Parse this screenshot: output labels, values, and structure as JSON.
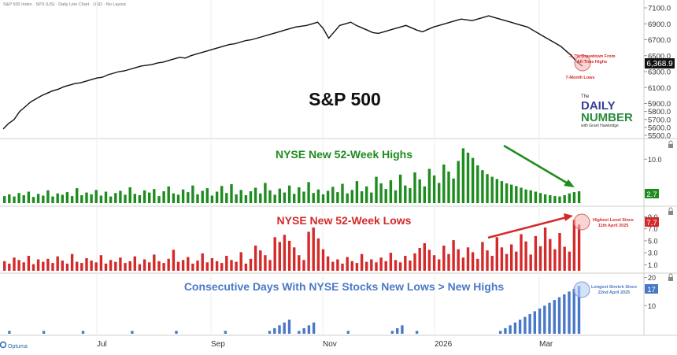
{
  "header": {
    "caption": "S&P 500 Index · SPX (US) · Daily Line Chart · USD · No Layout"
  },
  "colors": {
    "price": "#111111",
    "highs": "#1e8c1e",
    "lows": "#d42a2a",
    "streak": "#4a78c8",
    "grid": "#e6e6e6",
    "badge_price_bg": "#111111"
  },
  "chart_data": [
    {
      "type": "line",
      "title": "S&P 500",
      "series": [
        {
          "name": "S&P 500",
          "values": [
            5580,
            5650,
            5700,
            5800,
            5860,
            5920,
            5960,
            6000,
            6030,
            6060,
            6080,
            6110,
            6130,
            6150,
            6160,
            6180,
            6200,
            6220,
            6230,
            6260,
            6280,
            6300,
            6310,
            6330,
            6350,
            6370,
            6380,
            6390,
            6410,
            6420,
            6440,
            6460,
            6480,
            6470,
            6500,
            6520,
            6540,
            6560,
            6580,
            6600,
            6620,
            6640,
            6650,
            6670,
            6690,
            6700,
            6720,
            6740,
            6760,
            6780,
            6800,
            6820,
            6840,
            6860,
            6870,
            6880,
            6900,
            6920,
            6840,
            6720,
            6800,
            6880,
            6900,
            6920,
            6880,
            6850,
            6820,
            6790,
            6780,
            6800,
            6820,
            6840,
            6860,
            6880,
            6850,
            6820,
            6800,
            6830,
            6860,
            6880,
            6900,
            6920,
            6940,
            6960,
            6950,
            6940,
            6960,
            6980,
            7000,
            6980,
            6960,
            6940,
            6920,
            6900,
            6880,
            6860,
            6820,
            6780,
            6740,
            6700,
            6660,
            6620,
            6560,
            6500,
            6420,
            6369
          ]
        }
      ],
      "ylim": [
        5500,
        7100
      ],
      "yticks": [
        "7100.0",
        "6900.0",
        "6700.0",
        "6500.0",
        "6300.0",
        "6100.0",
        "5900.0",
        "5800.0",
        "5700.0",
        "5600.0",
        "5500.0"
      ],
      "yticks_values": [
        7100,
        6900,
        6700,
        6500,
        6300,
        6100,
        5900,
        5800,
        5700,
        5600,
        5500
      ],
      "last_value": "6,368.9",
      "annotations": [
        {
          "text_line1": "-8.7% Drawdown From",
          "text_line2": "All-Time Highs"
        },
        {
          "text": "7-Month Lows"
        }
      ]
    },
    {
      "type": "bar",
      "title": "NYSE New 52-Week Highs",
      "series": [
        {
          "name": "NYSE New 52-Week Highs",
          "values": [
            1.6,
            2.0,
            1.5,
            2.3,
            1.8,
            2.6,
            1.4,
            2.1,
            1.7,
            2.9,
            1.5,
            2.2,
            1.9,
            2.5,
            1.6,
            3.4,
            1.8,
            2.4,
            2.0,
            3.0,
            1.7,
            2.6,
            1.5,
            2.3,
            2.8,
            1.9,
            3.6,
            2.1,
            1.8,
            2.9,
            2.4,
            3.2,
            1.6,
            2.7,
            3.8,
            2.2,
            1.9,
            3.1,
            2.5,
            4.0,
            2.0,
            2.8,
            3.4,
            1.7,
            2.6,
            3.9,
            2.3,
            4.3,
            2.0,
            3.0,
            1.8,
            2.7,
            3.5,
            2.2,
            4.6,
            2.9,
            1.9,
            3.3,
            2.4,
            4.0,
            2.1,
            3.6,
            2.6,
            4.8,
            2.3,
            3.1,
            2.0,
            2.8,
            3.7,
            2.5,
            4.4,
            2.2,
            3.0,
            5.0,
            2.7,
            3.8,
            2.4,
            6.0,
            4.5,
            3.2,
            5.2,
            2.9,
            6.5,
            4.0,
            3.4,
            7.0,
            5.4,
            3.8,
            7.8,
            6.3,
            4.6,
            8.8,
            7.2,
            5.6,
            9.6,
            12.5,
            11.5,
            10.3,
            8.6,
            7.5,
            6.6,
            6.0,
            5.5,
            5.0,
            4.5,
            4.2,
            3.9,
            3.5,
            3.1,
            2.9,
            2.6,
            2.3,
            2.0,
            1.8,
            1.6,
            1.5,
            1.8,
            2.2,
            2.5,
            2.7
          ]
        }
      ],
      "ylim": [
        0,
        14
      ],
      "yticks": [
        "10.0"
      ],
      "yticks_values": [
        10
      ],
      "last_value": "2.7"
    },
    {
      "type": "bar",
      "title": "NYSE New 52-Week Lows",
      "series": [
        {
          "name": "NYSE New 52-Week Lows",
          "values": [
            1.6,
            1.2,
            2.2,
            1.8,
            1.4,
            2.5,
            1.1,
            1.9,
            1.5,
            2.0,
            1.3,
            2.4,
            1.7,
            1.2,
            2.8,
            1.5,
            1.3,
            2.1,
            1.7,
            1.4,
            2.6,
            1.2,
            1.8,
            1.5,
            2.2,
            1.3,
            1.6,
            2.4,
            1.1,
            1.9,
            1.4,
            2.7,
            1.6,
            1.3,
            2.0,
            3.5,
            1.5,
            1.8,
            2.3,
            1.2,
            1.7,
            2.9,
            1.4,
            2.1,
            1.6,
            1.3,
            2.5,
            1.8,
            1.5,
            3.1,
            1.2,
            2.0,
            4.2,
            3.4,
            2.6,
            1.8,
            5.6,
            4.8,
            6.0,
            5.0,
            3.9,
            2.6,
            1.8,
            6.5,
            7.2,
            5.4,
            3.6,
            2.4,
            1.5,
            1.9,
            1.2,
            2.3,
            1.6,
            1.3,
            2.8,
            1.5,
            1.9,
            1.4,
            2.2,
            1.6,
            3.0,
            1.8,
            1.4,
            2.5,
            1.7,
            2.9,
            3.8,
            4.6,
            3.5,
            2.6,
            1.9,
            4.2,
            2.8,
            5.1,
            3.6,
            2.2,
            3.9,
            3.1,
            2.0,
            4.8,
            3.4,
            2.5,
            5.6,
            3.9,
            2.8,
            4.4,
            3.2,
            6.1,
            4.9,
            2.7,
            5.8,
            4.1,
            7.2,
            5.3,
            3.6,
            6.3,
            4.0,
            3.2,
            8.5,
            7.7
          ]
        }
      ],
      "ylim": [
        0,
        10.5
      ],
      "yticks": [
        "9.0",
        "7.0",
        "5.0",
        "3.0",
        "1.0"
      ],
      "yticks_values": [
        9,
        7,
        5,
        3,
        1
      ],
      "last_value": "7.7",
      "annotations": [
        {
          "text_line1": "Highest Level Since",
          "text_line2": "11th April 2025"
        }
      ]
    },
    {
      "type": "bar",
      "title": "Consecutive Days With NYSE Stocks New Lows > New Highs",
      "series": [
        {
          "name": "Consecutive Days",
          "values": [
            0,
            1,
            0,
            0,
            0,
            0,
            0,
            0,
            1,
            0,
            0,
            0,
            0,
            0,
            0,
            0,
            1,
            0,
            0,
            0,
            0,
            0,
            0,
            0,
            0,
            0,
            1,
            0,
            0,
            0,
            0,
            0,
            0,
            0,
            0,
            1,
            0,
            0,
            0,
            0,
            0,
            0,
            0,
            0,
            0,
            1,
            0,
            0,
            0,
            0,
            0,
            0,
            0,
            0,
            1,
            2,
            3,
            4,
            5,
            0,
            1,
            2,
            3,
            4,
            0,
            0,
            0,
            0,
            0,
            0,
            1,
            0,
            0,
            0,
            0,
            0,
            0,
            0,
            0,
            1,
            2,
            3,
            0,
            0,
            1,
            0,
            0,
            0,
            0,
            0,
            0,
            0,
            0,
            0,
            0,
            0,
            0,
            0,
            0,
            0,
            0,
            1,
            2,
            3,
            4,
            5,
            6,
            7,
            8,
            9,
            10,
            11,
            12,
            13,
            14,
            15,
            16,
            17
          ]
        }
      ],
      "ylim": [
        0,
        21
      ],
      "yticks": [
        "20",
        "10"
      ],
      "yticks_values": [
        20,
        10
      ],
      "last_value": "17",
      "annotations": [
        {
          "text_line1": "Longest Stretch Since",
          "text_line2": "22nd April 2025"
        }
      ]
    }
  ],
  "x_axis": {
    "labels": [
      "Jul",
      "Sep",
      "Nov",
      "2026",
      "Mar"
    ]
  },
  "branding": {
    "line1": "The",
    "line2": "DAILY",
    "line3": "NUMBER",
    "line4": "with Grant Hawkridge",
    "vendor": "Optuma"
  }
}
